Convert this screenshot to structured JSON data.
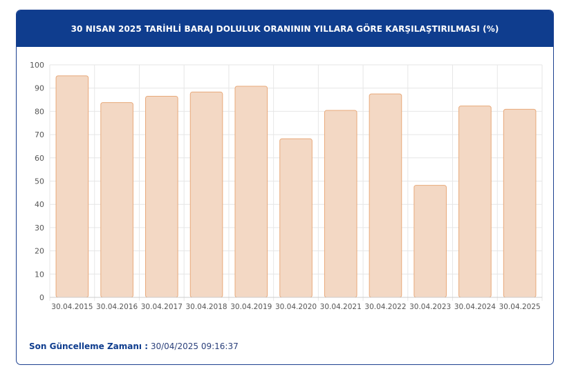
{
  "header": {
    "title": "30 NISAN 2025 TARİHLİ BARAJ DOLULUK ORANININ YILLARA GÖRE KARŞILAŞTIRILMASI (%)"
  },
  "footer": {
    "label": "Son Güncelleme Zamanı :",
    "value": "30/04/2025 09:16:37"
  },
  "colors": {
    "header_bg": "#0f3d8e",
    "bar_fill": "#f3d8c4",
    "bar_stroke": "#e8a97a",
    "grid": "#e6e6e6"
  },
  "chart_data": {
    "type": "bar",
    "title": "30 NISAN 2025 TARİHLİ BARAJ DOLULUK ORANININ YILLARA GÖRE KARŞILAŞTIRILMASI (%)",
    "categories": [
      "30.04.2015",
      "30.04.2016",
      "30.04.2017",
      "30.04.2018",
      "30.04.2019",
      "30.04.2020",
      "30.04.2021",
      "30.04.2022",
      "30.04.2023",
      "30.04.2024",
      "30.04.2025"
    ],
    "values": [
      95.3,
      83.8,
      86.5,
      88.3,
      90.8,
      68.2,
      80.4,
      87.5,
      48.2,
      82.3,
      80.9
    ],
    "ylim": [
      0,
      100
    ],
    "yticks": [
      "0",
      "10",
      "20",
      "30",
      "40",
      "50",
      "60",
      "70",
      "80",
      "90",
      "100"
    ],
    "grid": true,
    "legend": "none"
  }
}
